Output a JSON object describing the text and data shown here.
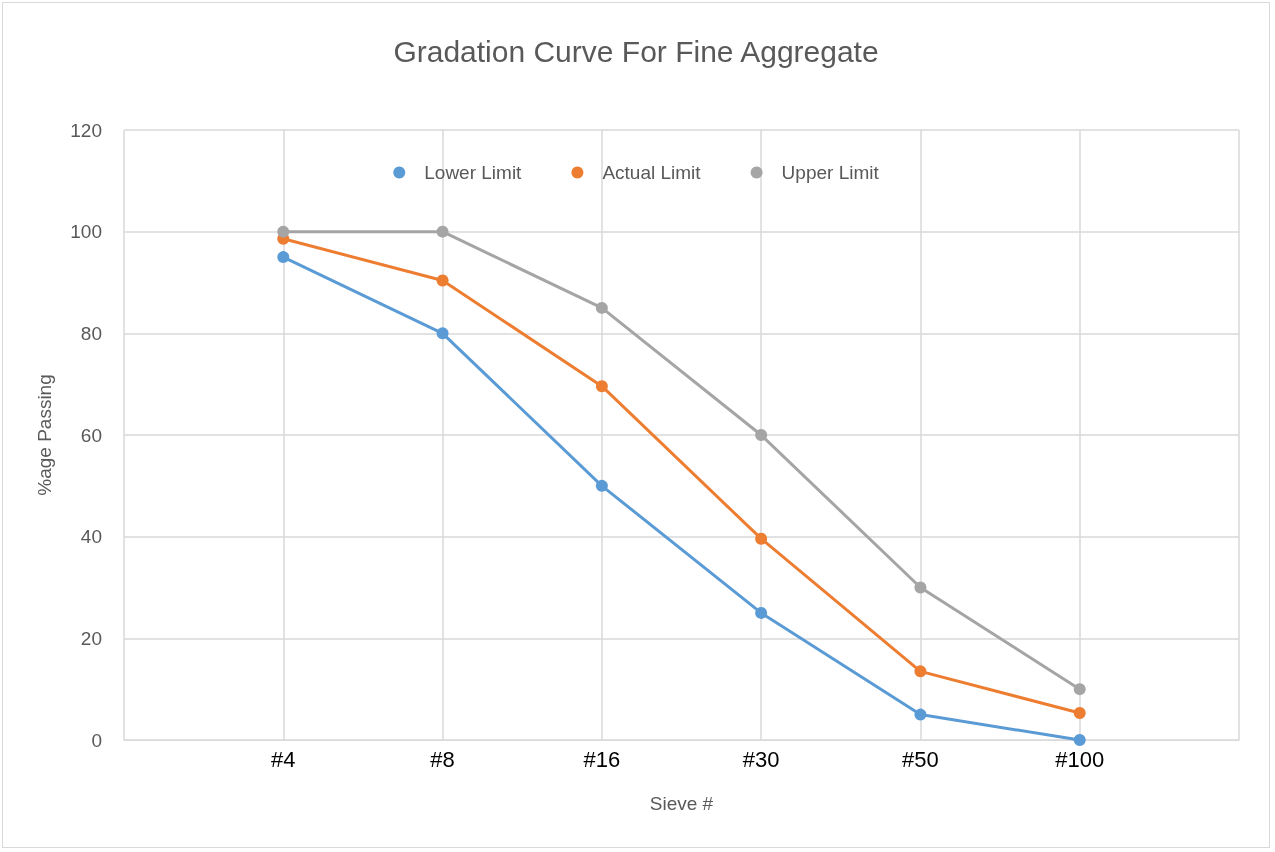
{
  "chart_data": {
    "type": "line",
    "title": "Gradation Curve For Fine Aggregate",
    "xlabel": "Sieve #",
    "ylabel": "%age Passing",
    "categories": [
      null,
      "#4",
      "#8",
      "#16",
      "#30",
      "#50",
      "#100",
      null
    ],
    "series": [
      {
        "name": "Lower Limit",
        "color": "#5b9bd5",
        "values": [
          null,
          95,
          80,
          50,
          25,
          5,
          0,
          null
        ]
      },
      {
        "name": "Actual Limit",
        "color": "#ed7d31",
        "values": [
          null,
          98.6,
          90.4,
          69.6,
          39.6,
          13.5,
          5.3,
          null
        ]
      },
      {
        "name": "Upper Limit",
        "color": "#a5a5a5",
        "values": [
          null,
          100,
          100,
          85,
          60,
          30,
          10,
          null
        ]
      }
    ],
    "ylim": [
      0,
      120
    ],
    "yticks": [
      0,
      20,
      40,
      60,
      80,
      100,
      120
    ],
    "grid": true,
    "legend": "top",
    "marker": "circle",
    "line_style": "solid"
  }
}
